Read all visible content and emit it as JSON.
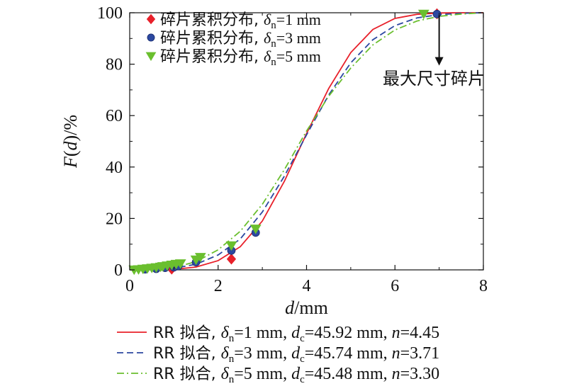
{
  "chart_data": {
    "type": "line",
    "xlabel": "d/mm",
    "ylabel": "F(d)/%",
    "xlim": [
      0,
      8
    ],
    "ylim": [
      0,
      100
    ],
    "xticks": [
      0,
      2,
      4,
      6,
      8
    ],
    "yticks": [
      0,
      20,
      40,
      60,
      80,
      100
    ],
    "xtick_labels": [
      "0",
      "2",
      "4",
      "6",
      "8"
    ],
    "ytick_labels": [
      "0",
      "20",
      "40",
      "60",
      "80",
      "100"
    ],
    "grid": false,
    "legend_top_placement": "top-left",
    "legend_bottom_placement": "below-chart",
    "annotation": {
      "text": "最大尺寸碎片",
      "arrow_from": [
        7.0,
        99
      ],
      "arrow_to": [
        7.0,
        80
      ]
    },
    "scatter_series": [
      {
        "label_prefix": "碎片累积分布, ",
        "label_sym": "δ",
        "label_sub": "n",
        "label_rest": "=1 mm",
        "marker": "diamond",
        "color": "#e8202a",
        "points": [
          [
            0.95,
            0.3
          ],
          [
            2.3,
            4.2
          ],
          [
            6.95,
            99.6
          ]
        ]
      },
      {
        "label_prefix": "碎片累积分布, ",
        "label_sym": "δ",
        "label_sub": "n",
        "label_rest": "=3 mm",
        "marker": "circle",
        "color": "#2c48a0",
        "points": [
          [
            0.35,
            0.2
          ],
          [
            0.6,
            0.4
          ],
          [
            0.8,
            0.8
          ],
          [
            1.0,
            1.0
          ],
          [
            1.1,
            1.5
          ],
          [
            1.5,
            3.0
          ],
          [
            2.3,
            7.5
          ],
          [
            2.85,
            14.5
          ],
          [
            6.95,
            99.5
          ]
        ]
      },
      {
        "label_prefix": "碎片累积分布, ",
        "label_sym": "δ",
        "label_sub": "n",
        "label_rest": "=5 mm",
        "marker": "triangle-down",
        "color": "#6abf2e",
        "points": [
          [
            0.1,
            0.1
          ],
          [
            0.2,
            0.2
          ],
          [
            0.3,
            0.4
          ],
          [
            0.4,
            0.6
          ],
          [
            0.5,
            0.8
          ],
          [
            0.6,
            1.0
          ],
          [
            0.7,
            1.2
          ],
          [
            0.75,
            1.4
          ],
          [
            0.85,
            1.7
          ],
          [
            0.95,
            2.0
          ],
          [
            1.05,
            2.3
          ],
          [
            1.15,
            2.5
          ],
          [
            1.5,
            4.0
          ],
          [
            1.6,
            5.0
          ],
          [
            2.3,
            9.5
          ],
          [
            2.85,
            16.0
          ],
          [
            6.65,
            99.6
          ]
        ]
      }
    ],
    "fit_series": [
      {
        "label_pre": "RR 拟合, ",
        "label_sym": "δ",
        "label_sub": "n",
        "label_mid": "=1 mm, ",
        "label_sym2": "d",
        "label_sub2": "c",
        "label_mid2": "=45.92 mm, ",
        "label_n": "n",
        "label_end": "=4.45",
        "color": "#e8202a",
        "dash": "solid",
        "x": [
          0,
          1,
          1.5,
          2,
          2.5,
          3,
          3.5,
          4,
          4.5,
          5,
          5.5,
          6,
          6.5,
          7,
          7.5,
          8
        ],
        "y": [
          0,
          0.2,
          1.1,
          3.6,
          9.0,
          19.0,
          34.5,
          53.0,
          70.5,
          84.5,
          93.5,
          97.8,
          99.4,
          99.9,
          100,
          100
        ]
      },
      {
        "label_pre": "RR 拟合, ",
        "label_sym": "δ",
        "label_sub": "n",
        "label_mid": "=3 mm, ",
        "label_sym2": "d",
        "label_sub2": "c",
        "label_mid2": "=45.74 mm, ",
        "label_n": "n",
        "label_end": "=3.71",
        "color": "#2c48a0",
        "dash": "dashed",
        "x": [
          0,
          1,
          1.5,
          2,
          2.5,
          3,
          3.5,
          4,
          4.5,
          5,
          5.5,
          6,
          6.5,
          7,
          7.5,
          8
        ],
        "y": [
          0,
          0.6,
          2.2,
          5.8,
          12.0,
          22.5,
          36.5,
          52.5,
          68.0,
          80.5,
          89.5,
          95.0,
          98.0,
          99.3,
          99.8,
          100
        ]
      },
      {
        "label_pre": "RR 拟合, ",
        "label_sym": "δ",
        "label_sub": "n",
        "label_mid": "=5 mm, ",
        "label_sym2": "d",
        "label_sub2": "c",
        "label_mid2": "=45.48 mm, ",
        "label_n": "n",
        "label_end": "=3.30",
        "color": "#6abf2e",
        "dash": "dashdot",
        "x": [
          0,
          1,
          1.5,
          2,
          2.5,
          3,
          3.5,
          4,
          4.5,
          5,
          5.5,
          6,
          6.5,
          7,
          7.5,
          8
        ],
        "y": [
          0,
          0.9,
          3.2,
          7.8,
          15.0,
          25.5,
          39.0,
          54.0,
          67.5,
          78.5,
          87.5,
          93.3,
          96.8,
          98.6,
          99.5,
          100
        ]
      }
    ]
  }
}
